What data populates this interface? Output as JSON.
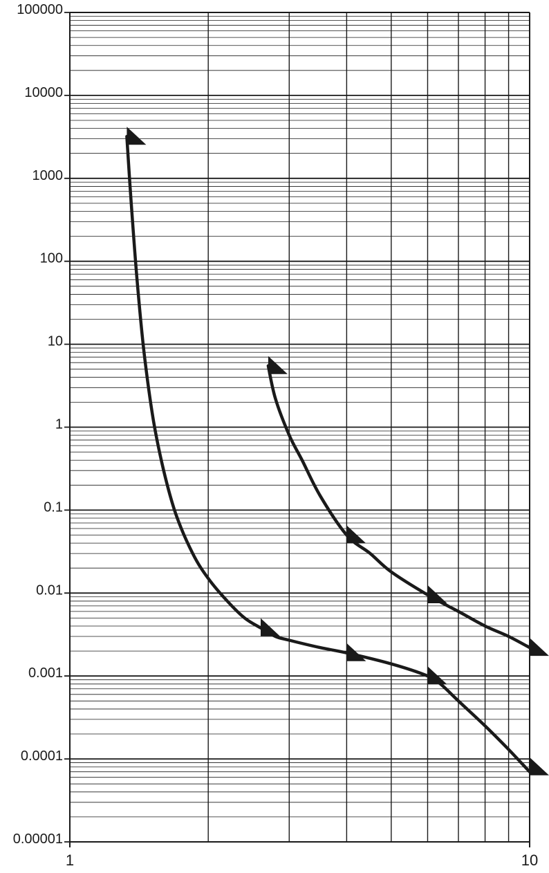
{
  "chart_data": {
    "type": "line",
    "title": "",
    "xlabel": "",
    "ylabel": "",
    "x_scale": "log",
    "y_scale": "log",
    "xlim": [
      1,
      10
    ],
    "ylim": [
      1e-05,
      100000
    ],
    "grid": true,
    "legend": "none",
    "colors": {
      "line": "#1a1a1a",
      "grid": "#1a1a1a",
      "background": "#ffffff"
    },
    "x_ticks": [
      {
        "value": 1,
        "label": "1"
      },
      {
        "value": 10,
        "label": "10"
      }
    ],
    "x_gridlines": [
      2,
      3,
      4,
      5,
      6,
      7,
      8,
      9
    ],
    "y_ticks": [
      {
        "value": 100000,
        "label": "100000"
      },
      {
        "value": 10000,
        "label": "10000"
      },
      {
        "value": 1000,
        "label": "1000"
      },
      {
        "value": 100,
        "label": "100"
      },
      {
        "value": 10,
        "label": "10"
      },
      {
        "value": 1,
        "label": "1"
      },
      {
        "value": 0.1,
        "label": "0.1"
      },
      {
        "value": 0.01,
        "label": "0.01"
      },
      {
        "value": 0.001,
        "label": "0.001"
      },
      {
        "value": 0.0001,
        "label": "0.0001"
      },
      {
        "value": 1e-05,
        "label": "0.00001"
      }
    ],
    "series": [
      {
        "points": [
          [
            1.33,
            3200
          ],
          [
            1.36,
            500
          ],
          [
            1.4,
            60
          ],
          [
            1.45,
            8
          ],
          [
            1.52,
            1.2
          ],
          [
            1.6,
            0.3
          ],
          [
            1.7,
            0.09
          ],
          [
            1.85,
            0.03
          ],
          [
            2.0,
            0.015
          ],
          [
            2.2,
            0.008
          ],
          [
            2.4,
            0.005
          ],
          [
            2.6,
            0.0038
          ],
          [
            2.8,
            0.003
          ],
          [
            3.0,
            0.0027
          ],
          [
            3.5,
            0.0022
          ],
          [
            4.0,
            0.0019
          ],
          [
            5.0,
            0.0014
          ],
          [
            6.0,
            0.001
          ],
          [
            6.4,
            0.0008
          ],
          [
            7.0,
            0.0005
          ],
          [
            8.0,
            0.00025
          ],
          [
            9.0,
            0.00013
          ],
          [
            10.0,
            7e-05
          ]
        ],
        "arrows": [
          {
            "x": 1.33,
            "y": 3200
          },
          {
            "x": 2.6,
            "y": 0.0038
          },
          {
            "x": 4.0,
            "y": 0.0019
          },
          {
            "x": 6.0,
            "y": 0.001
          },
          {
            "x": 10.0,
            "y": 8e-05
          }
        ]
      },
      {
        "points": [
          [
            2.7,
            5.5
          ],
          [
            2.8,
            2.2
          ],
          [
            3.0,
            0.8
          ],
          [
            3.2,
            0.4
          ],
          [
            3.5,
            0.15
          ],
          [
            4.0,
            0.05
          ],
          [
            4.5,
            0.03
          ],
          [
            5.0,
            0.018
          ],
          [
            6.0,
            0.0095
          ],
          [
            7.0,
            0.006
          ],
          [
            8.0,
            0.004
          ],
          [
            9.0,
            0.003
          ],
          [
            10.0,
            0.0022
          ]
        ],
        "arrows": [
          {
            "x": 2.7,
            "y": 5.5
          },
          {
            "x": 4.0,
            "y": 0.05
          },
          {
            "x": 6.0,
            "y": 0.0095
          },
          {
            "x": 10.0,
            "y": 0.0022
          }
        ]
      }
    ]
  }
}
